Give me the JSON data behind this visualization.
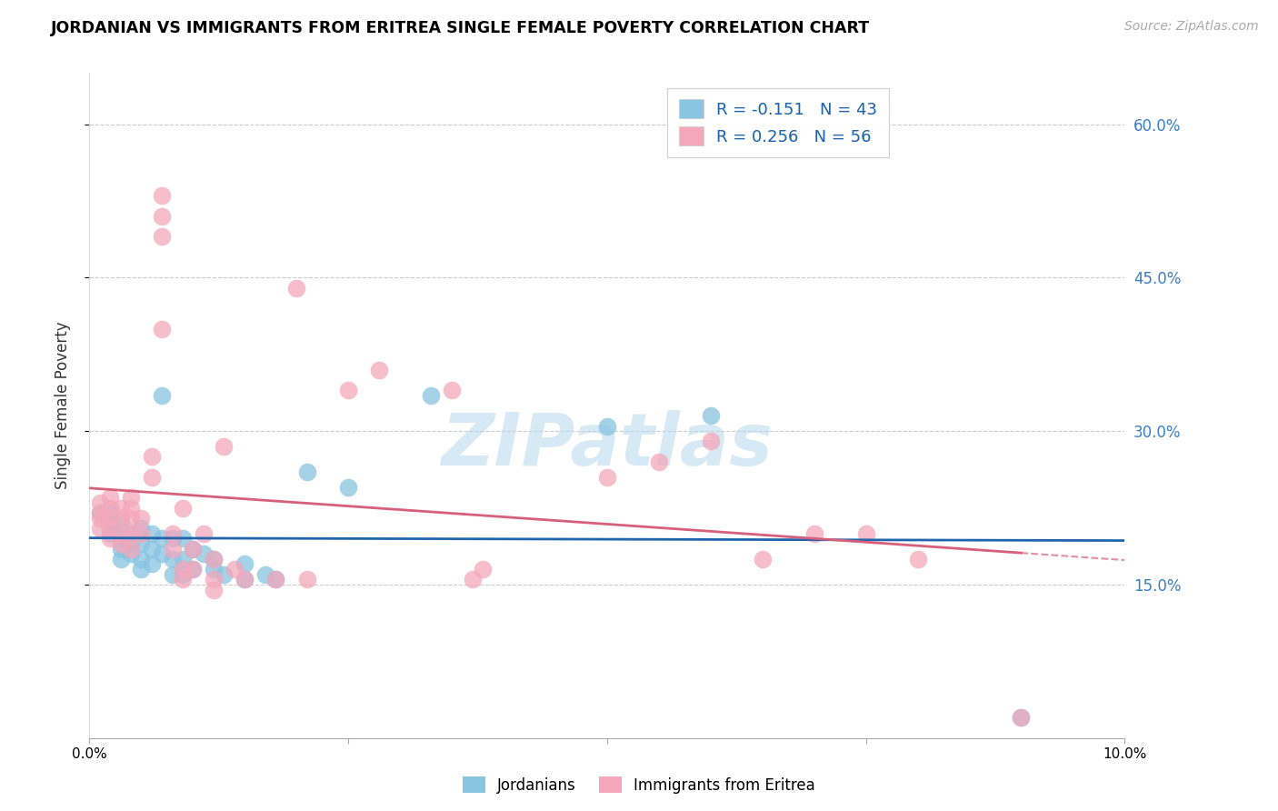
{
  "title": "JORDANIAN VS IMMIGRANTS FROM ERITREA SINGLE FEMALE POVERTY CORRELATION CHART",
  "source": "Source: ZipAtlas.com",
  "ylabel": "Single Female Poverty",
  "y_ticks": [
    0.15,
    0.3,
    0.45,
    0.6
  ],
  "y_tick_labels": [
    "15.0%",
    "30.0%",
    "45.0%",
    "60.0%"
  ],
  "xlim": [
    0.0,
    0.1
  ],
  "ylim": [
    0.0,
    0.65
  ],
  "legend_r1": "R = -0.151",
  "legend_n1": "N = 43",
  "legend_r2": "R = 0.256",
  "legend_n2": "N = 56",
  "blue_color": "#89c4e1",
  "pink_color": "#f4a7bb",
  "line_blue": "#2166ac",
  "line_pink": "#d6607a",
  "watermark": "ZIPatlas",
  "jordanians": [
    [
      0.001,
      0.22
    ],
    [
      0.002,
      0.22
    ],
    [
      0.002,
      0.21
    ],
    [
      0.002,
      0.2
    ],
    [
      0.003,
      0.21
    ],
    [
      0.003,
      0.195
    ],
    [
      0.003,
      0.185
    ],
    [
      0.003,
      0.175
    ],
    [
      0.004,
      0.2
    ],
    [
      0.004,
      0.19
    ],
    [
      0.004,
      0.18
    ],
    [
      0.005,
      0.205
    ],
    [
      0.005,
      0.19
    ],
    [
      0.005,
      0.175
    ],
    [
      0.005,
      0.165
    ],
    [
      0.006,
      0.2
    ],
    [
      0.006,
      0.185
    ],
    [
      0.006,
      0.17
    ],
    [
      0.007,
      0.335
    ],
    [
      0.007,
      0.195
    ],
    [
      0.007,
      0.18
    ],
    [
      0.008,
      0.195
    ],
    [
      0.008,
      0.175
    ],
    [
      0.008,
      0.16
    ],
    [
      0.009,
      0.195
    ],
    [
      0.009,
      0.175
    ],
    [
      0.009,
      0.16
    ],
    [
      0.01,
      0.185
    ],
    [
      0.01,
      0.165
    ],
    [
      0.011,
      0.18
    ],
    [
      0.012,
      0.175
    ],
    [
      0.012,
      0.165
    ],
    [
      0.013,
      0.16
    ],
    [
      0.015,
      0.17
    ],
    [
      0.015,
      0.155
    ],
    [
      0.017,
      0.16
    ],
    [
      0.018,
      0.155
    ],
    [
      0.021,
      0.26
    ],
    [
      0.025,
      0.245
    ],
    [
      0.033,
      0.335
    ],
    [
      0.05,
      0.305
    ],
    [
      0.06,
      0.315
    ],
    [
      0.09,
      0.02
    ]
  ],
  "eritreans": [
    [
      0.001,
      0.23
    ],
    [
      0.001,
      0.22
    ],
    [
      0.001,
      0.215
    ],
    [
      0.001,
      0.205
    ],
    [
      0.002,
      0.235
    ],
    [
      0.002,
      0.225
    ],
    [
      0.002,
      0.215
    ],
    [
      0.002,
      0.205
    ],
    [
      0.002,
      0.195
    ],
    [
      0.003,
      0.225
    ],
    [
      0.003,
      0.215
    ],
    [
      0.003,
      0.2
    ],
    [
      0.003,
      0.19
    ],
    [
      0.004,
      0.235
    ],
    [
      0.004,
      0.225
    ],
    [
      0.004,
      0.215
    ],
    [
      0.004,
      0.2
    ],
    [
      0.004,
      0.185
    ],
    [
      0.005,
      0.215
    ],
    [
      0.005,
      0.2
    ],
    [
      0.006,
      0.275
    ],
    [
      0.006,
      0.255
    ],
    [
      0.007,
      0.49
    ],
    [
      0.007,
      0.4
    ],
    [
      0.007,
      0.53
    ],
    [
      0.007,
      0.51
    ],
    [
      0.008,
      0.2
    ],
    [
      0.008,
      0.185
    ],
    [
      0.009,
      0.225
    ],
    [
      0.009,
      0.165
    ],
    [
      0.009,
      0.155
    ],
    [
      0.01,
      0.185
    ],
    [
      0.01,
      0.165
    ],
    [
      0.011,
      0.2
    ],
    [
      0.012,
      0.175
    ],
    [
      0.012,
      0.155
    ],
    [
      0.012,
      0.145
    ],
    [
      0.013,
      0.285
    ],
    [
      0.014,
      0.165
    ],
    [
      0.015,
      0.155
    ],
    [
      0.018,
      0.155
    ],
    [
      0.02,
      0.44
    ],
    [
      0.021,
      0.155
    ],
    [
      0.025,
      0.34
    ],
    [
      0.028,
      0.36
    ],
    [
      0.035,
      0.34
    ],
    [
      0.037,
      0.155
    ],
    [
      0.038,
      0.165
    ],
    [
      0.05,
      0.255
    ],
    [
      0.055,
      0.27
    ],
    [
      0.06,
      0.29
    ],
    [
      0.065,
      0.175
    ],
    [
      0.07,
      0.2
    ],
    [
      0.075,
      0.2
    ],
    [
      0.08,
      0.175
    ],
    [
      0.09,
      0.02
    ]
  ]
}
